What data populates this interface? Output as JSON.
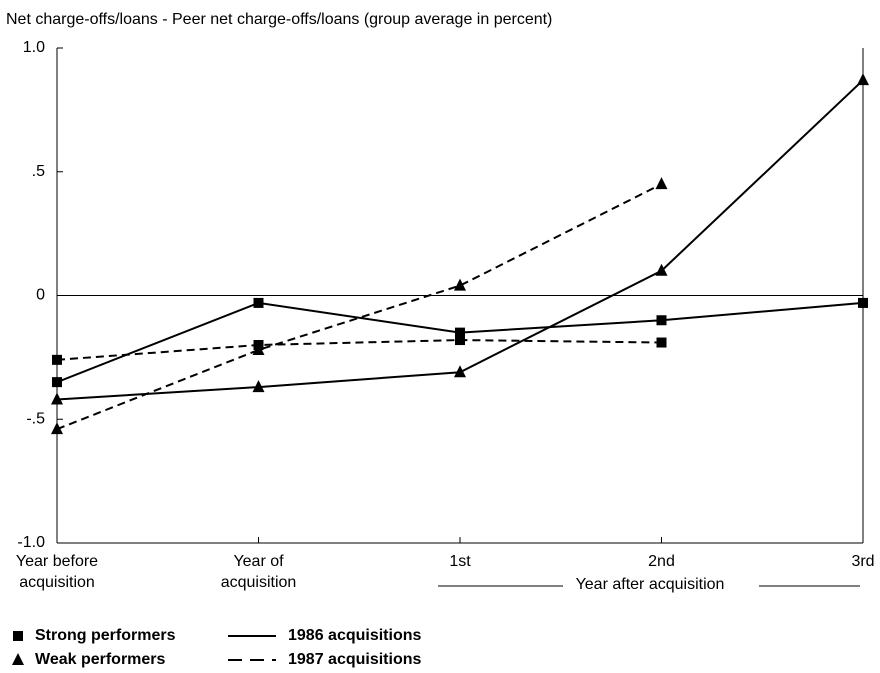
{
  "chart_data": {
    "type": "line",
    "title": "Net charge-offs/loans - Peer net charge-offs/loans (group average in percent)",
    "categories": [
      "Year before acquisition",
      "Year of acquisition",
      "1st",
      "2nd",
      "3rd"
    ],
    "category_group": "Year after acquisition",
    "ylim": [
      -1,
      1
    ],
    "yticks": [
      {
        "value": 1,
        "label": "1.0"
      },
      {
        "value": 0.5,
        "label": ".5"
      },
      0,
      {
        "value": -0.5,
        "label": "-.5"
      },
      {
        "value": -1,
        "label": "-1.0"
      }
    ],
    "color": "#000000",
    "series": [
      {
        "marker": "square",
        "dashed": false,
        "values": [
          -0.35,
          -0.03,
          -0.15,
          -0.1,
          -0.03
        ]
      },
      {
        "marker": "triangle",
        "dashed": false,
        "values": [
          -0.42,
          -0.37,
          -0.31,
          0.1,
          0.87
        ]
      },
      {
        "marker": "square",
        "dashed": true,
        "values": [
          -0.26,
          -0.2,
          -0.18,
          -0.19,
          null
        ]
      },
      {
        "marker": "triangle",
        "dashed": true,
        "values": [
          -0.54,
          -0.22,
          0.04,
          0.45,
          null
        ]
      }
    ],
    "legend": {
      "markers": [
        {
          "marker": "square",
          "label": "Strong performers"
        },
        {
          "marker": "triangle",
          "label": "Weak performers"
        }
      ],
      "lines": [
        {
          "dashed": false,
          "label": "1986 acquisitions"
        },
        {
          "dashed": true,
          "label": "1987 acquisitions"
        }
      ]
    }
  }
}
